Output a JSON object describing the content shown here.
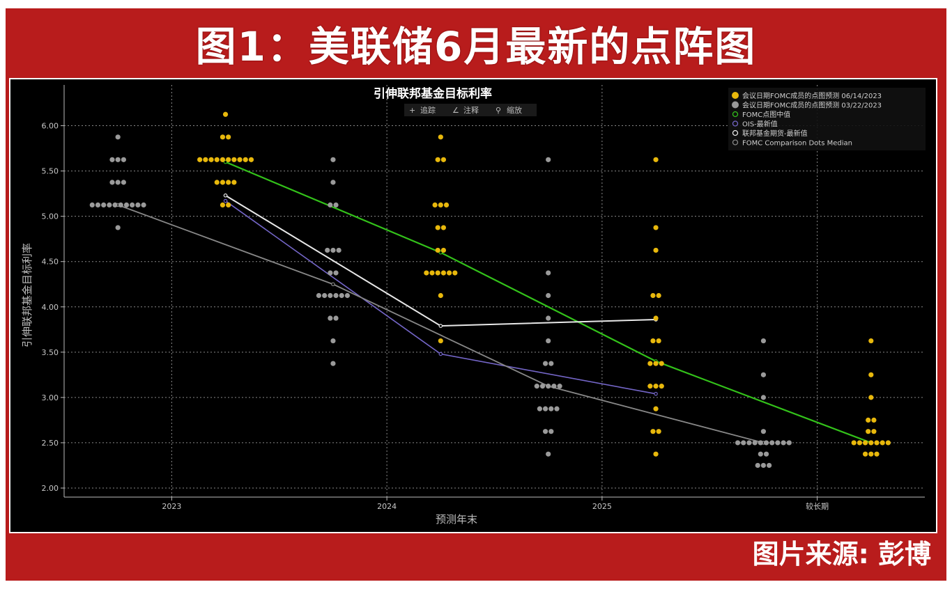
{
  "banner": {
    "title": "图1：美联储6月最新的点阵图"
  },
  "footer": {
    "source": "图片来源: 彭博"
  },
  "toolbar": {
    "items": [
      {
        "icon": "plus-icon",
        "label": "追踪"
      },
      {
        "icon": "pen-icon",
        "label": "注释"
      },
      {
        "icon": "search-icon",
        "label": "缩放"
      }
    ]
  },
  "chart_data": {
    "type": "scatter",
    "title": "引伸联邦基金目标利率",
    "xlabel": "预测年末",
    "ylabel": "引伸联邦基金目标利率",
    "categories": [
      "2023",
      "2024",
      "2025",
      "较长期"
    ],
    "ylim": [
      1.9,
      6.45
    ],
    "yticks": [
      2.0,
      2.5,
      3.0,
      3.5,
      4.0,
      4.5,
      5.0,
      5.5,
      6.0
    ],
    "ytick_labels": [
      "2.00",
      "2.50",
      "3.00",
      "3.50",
      "4.00",
      "4.50",
      "5.00",
      "5.50",
      "6.00"
    ],
    "grid": true,
    "legend_position": "top-right",
    "colors": {
      "june_dots": "#e8b80c",
      "march_dots": "#9a9a9a",
      "fomc_median": "#33c21a",
      "ois": "#7466c8",
      "fed_funds_futures": "#e8e8e8",
      "comparison_median": "#888888",
      "grid": "#8a8a8a"
    },
    "legend": [
      {
        "label": "会议日期FOMC成员的点图预测 06/14/2023",
        "marker": "dot",
        "color": "#e8b80c"
      },
      {
        "label": "会议日期FOMC成员的点图预测 03/22/2023",
        "marker": "dot",
        "color": "#9a9a9a"
      },
      {
        "label": "FOMC点图中值",
        "marker": "ring",
        "color": "#33c21a"
      },
      {
        "label": "OIS-最新值",
        "marker": "ring",
        "color": "#7466c8"
      },
      {
        "label": "联邦基金期货-最新值",
        "marker": "ring",
        "color": "#e8e8e8"
      },
      {
        "label": "FOMC Comparison Dots Median",
        "marker": "ring",
        "color": "#888888"
      }
    ],
    "dots_0322": [
      {
        "x": 0.25,
        "levels": [
          [
            5.875,
            1
          ],
          [
            5.625,
            3
          ],
          [
            5.375,
            3
          ],
          [
            5.125,
            10
          ],
          [
            4.875,
            1
          ]
        ]
      },
      {
        "x": 1.25,
        "levels": [
          [
            5.625,
            1
          ],
          [
            5.375,
            1
          ],
          [
            5.125,
            2
          ],
          [
            4.625,
            3
          ],
          [
            4.375,
            2
          ],
          [
            4.125,
            6
          ],
          [
            3.875,
            2
          ],
          [
            3.625,
            1
          ],
          [
            3.375,
            1
          ]
        ]
      },
      {
        "x": 2.25,
        "levels": [
          [
            5.625,
            1
          ],
          [
            4.375,
            1
          ],
          [
            4.125,
            1
          ],
          [
            3.875,
            1
          ],
          [
            3.625,
            1
          ],
          [
            3.375,
            2
          ],
          [
            3.125,
            5
          ],
          [
            2.875,
            4
          ],
          [
            2.625,
            2
          ],
          [
            2.375,
            1
          ]
        ]
      },
      {
        "x": 3.25,
        "levels": [
          [
            3.625,
            1
          ],
          [
            3.25,
            1
          ],
          [
            3.0,
            1
          ],
          [
            2.625,
            1
          ],
          [
            2.5,
            10
          ],
          [
            2.375,
            2
          ],
          [
            2.25,
            3
          ]
        ]
      }
    ],
    "dots_0614": [
      {
        "x": 0.75,
        "levels": [
          [
            6.125,
            1
          ],
          [
            5.875,
            2
          ],
          [
            5.625,
            10
          ],
          [
            5.375,
            4
          ],
          [
            5.125,
            2
          ]
        ]
      },
      {
        "x": 1.75,
        "levels": [
          [
            5.875,
            1
          ],
          [
            5.625,
            2
          ],
          [
            5.125,
            3
          ],
          [
            4.875,
            2
          ],
          [
            4.625,
            2
          ],
          [
            4.375,
            6
          ],
          [
            4.125,
            1
          ],
          [
            3.625,
            1
          ]
        ]
      },
      {
        "x": 2.75,
        "levels": [
          [
            5.625,
            1
          ],
          [
            4.875,
            1
          ],
          [
            4.625,
            1
          ],
          [
            4.125,
            2
          ],
          [
            3.875,
            1
          ],
          [
            3.625,
            2
          ],
          [
            3.375,
            3
          ],
          [
            3.125,
            3
          ],
          [
            2.875,
            1
          ],
          [
            2.625,
            2
          ],
          [
            2.375,
            1
          ]
        ]
      },
      {
        "x": 3.75,
        "levels": [
          [
            3.625,
            1
          ],
          [
            3.25,
            1
          ],
          [
            3.0,
            1
          ],
          [
            2.75,
            2
          ],
          [
            2.625,
            2
          ],
          [
            2.5,
            7
          ],
          [
            2.375,
            3
          ]
        ]
      }
    ],
    "series": [
      {
        "key": "fomc_median",
        "x": [
          0.75,
          1.75,
          2.75,
          3.75
        ],
        "y": [
          5.6,
          4.6,
          3.4,
          2.5
        ]
      },
      {
        "key": "ois",
        "x": [
          0.75,
          1.75,
          2.75
        ],
        "y": [
          5.17,
          3.48,
          3.04
        ]
      },
      {
        "key": "fed_funds_futures",
        "x": [
          0.75,
          1.75,
          2.75
        ],
        "y": [
          5.23,
          3.79,
          3.86
        ]
      },
      {
        "key": "comparison_median",
        "x": [
          0.25,
          1.25,
          2.25,
          3.25
        ],
        "y": [
          5.125,
          4.25,
          3.125,
          2.5
        ]
      }
    ]
  }
}
